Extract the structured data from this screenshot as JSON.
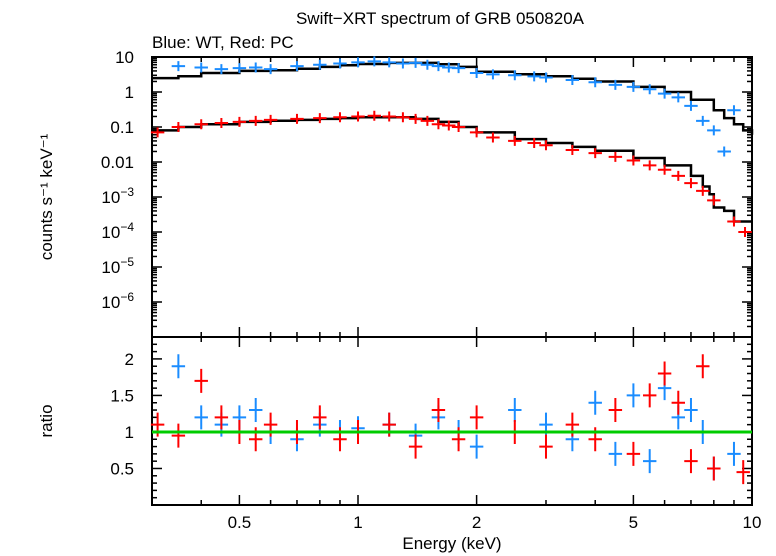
{
  "chart_data": [
    {
      "type": "scatter",
      "title": "Swift−XRT spectrum of GRB 050820A",
      "subtitle": "Blue: WT, Red: PC",
      "xlabel": "Energy (keV)",
      "ylabel": "counts s⁻¹ keV⁻¹",
      "xscale": "log",
      "yscale": "log",
      "xlim": [
        0.3,
        10
      ],
      "ylim": [
        1e-07,
        10
      ],
      "x_ticks": [
        {
          "v": 0.5,
          "label": "0.5"
        },
        {
          "v": 1,
          "label": "1"
        },
        {
          "v": 2,
          "label": "2"
        },
        {
          "v": 5,
          "label": "5"
        },
        {
          "v": 10,
          "label": "10"
        }
      ],
      "y_ticks": [
        {
          "v": 10,
          "base": "10",
          "exp": ""
        },
        {
          "v": 1,
          "base": "1",
          "exp": ""
        },
        {
          "v": 0.1,
          "base": "0.1",
          "exp": ""
        },
        {
          "v": 0.01,
          "base": "0.01",
          "exp": ""
        },
        {
          "v": 0.001,
          "base": "10",
          "exp": "−3"
        },
        {
          "v": 0.0001,
          "base": "10",
          "exp": "−4"
        },
        {
          "v": 1e-05,
          "base": "10",
          "exp": "−5"
        },
        {
          "v": 1e-06,
          "base": "10",
          "exp": "−6"
        }
      ],
      "colors": {
        "wt": "#1a8cff",
        "pc": "#ff0000",
        "model": "#000000"
      },
      "series": [
        {
          "name": "WT",
          "color": "#1a8cff",
          "x": [
            0.35,
            0.4,
            0.45,
            0.5,
            0.55,
            0.6,
            0.7,
            0.8,
            0.9,
            1.0,
            1.1,
            1.2,
            1.3,
            1.4,
            1.5,
            1.6,
            1.7,
            1.8,
            2.0,
            2.2,
            2.5,
            2.8,
            3.0,
            3.5,
            4.0,
            4.5,
            5.0,
            5.5,
            6.0,
            6.5,
            7.0,
            7.5,
            8.0,
            8.5,
            9.0
          ],
          "y": [
            5.5,
            5.0,
            4.5,
            4.8,
            5.0,
            4.5,
            5.5,
            6.0,
            6.5,
            7.0,
            7.5,
            7.0,
            6.5,
            6.8,
            6.0,
            5.5,
            5.0,
            4.8,
            3.5,
            3.2,
            3.0,
            2.8,
            2.6,
            2.2,
            1.9,
            1.6,
            1.4,
            1.2,
            0.9,
            0.7,
            0.4,
            0.15,
            0.08,
            0.02,
            0.3
          ],
          "model": {
            "x": [
              0.3,
              0.35,
              0.4,
              0.5,
              0.6,
              0.7,
              0.8,
              0.9,
              1.0,
              1.2,
              1.4,
              1.6,
              1.8,
              2.0,
              2.5,
              3.0,
              3.5,
              4.0,
              5.0,
              6.0,
              7.0,
              8.0,
              8.5,
              9.0,
              9.5,
              10.0
            ],
            "y": [
              2.5,
              2.8,
              3.5,
              4.0,
              4.2,
              4.6,
              5.2,
              5.8,
              6.3,
              6.8,
              6.8,
              6.2,
              5.2,
              3.8,
              3.2,
              2.8,
              2.4,
              2.0,
              1.4,
              1.0,
              0.6,
              0.3,
              0.18,
              0.12,
              0.08,
              0.06
            ]
          }
        },
        {
          "name": "PC",
          "color": "#ff0000",
          "x": [
            0.31,
            0.35,
            0.4,
            0.45,
            0.5,
            0.55,
            0.6,
            0.7,
            0.8,
            0.9,
            1.0,
            1.1,
            1.2,
            1.3,
            1.4,
            1.5,
            1.6,
            1.7,
            1.8,
            2.0,
            2.2,
            2.5,
            2.8,
            3.0,
            3.5,
            4.0,
            4.5,
            5.0,
            5.5,
            6.0,
            6.5,
            7.0,
            7.5,
            8.0,
            9.0,
            9.6
          ],
          "y": [
            0.07,
            0.1,
            0.12,
            0.13,
            0.14,
            0.15,
            0.16,
            0.17,
            0.18,
            0.19,
            0.2,
            0.21,
            0.2,
            0.19,
            0.17,
            0.15,
            0.12,
            0.11,
            0.1,
            0.07,
            0.05,
            0.04,
            0.035,
            0.03,
            0.022,
            0.018,
            0.014,
            0.011,
            0.008,
            0.006,
            0.004,
            0.0025,
            0.0015,
            0.0008,
            0.0002,
            0.0001
          ],
          "model": {
            "x": [
              0.3,
              0.35,
              0.4,
              0.5,
              0.6,
              0.7,
              0.8,
              0.9,
              1.0,
              1.2,
              1.4,
              1.6,
              1.8,
              2.0,
              2.5,
              3.0,
              3.5,
              4.0,
              5.0,
              6.0,
              7.0,
              7.5,
              7.8,
              8.0,
              8.5,
              9.0,
              10.0
            ],
            "y": [
              0.08,
              0.1,
              0.12,
              0.14,
              0.15,
              0.16,
              0.17,
              0.18,
              0.19,
              0.19,
              0.17,
              0.14,
              0.1,
              0.07,
              0.045,
              0.035,
              0.027,
              0.021,
              0.013,
              0.008,
              0.004,
              0.002,
              0.0012,
              0.0005,
              0.0004,
              0.0002,
              0.0002
            ]
          }
        }
      ]
    },
    {
      "type": "scatter",
      "xlabel": "Energy (keV)",
      "ylabel": "ratio",
      "xscale": "log",
      "xlim": [
        0.3,
        10
      ],
      "ylim": [
        0,
        2.3
      ],
      "y_ticks": [
        {
          "v": 0.5,
          "label": "0.5"
        },
        {
          "v": 1,
          "label": "1"
        },
        {
          "v": 1.5,
          "label": "1.5"
        },
        {
          "v": 2,
          "label": "2"
        }
      ],
      "reference_line": {
        "y": 1,
        "color": "#00cc00"
      },
      "series": [
        {
          "name": "WT",
          "color": "#1a8cff",
          "x": [
            0.35,
            0.4,
            0.45,
            0.5,
            0.55,
            0.6,
            0.7,
            0.8,
            0.9,
            1.0,
            1.2,
            1.4,
            1.6,
            1.8,
            2.0,
            2.5,
            3.0,
            3.5,
            4.0,
            4.5,
            5.0,
            5.5,
            6.0,
            6.5,
            7.0,
            7.5,
            8.0,
            9.0
          ],
          "y": [
            1.9,
            1.2,
            1.1,
            1.2,
            1.3,
            1.0,
            0.9,
            1.1,
            1.0,
            1.05,
            1.1,
            0.95,
            1.2,
            1.0,
            0.8,
            1.3,
            1.1,
            0.9,
            1.4,
            0.7,
            1.5,
            0.6,
            1.6,
            1.2,
            1.3,
            1.0,
            0.5,
            0.7
          ]
        },
        {
          "name": "PC",
          "color": "#ff0000",
          "x": [
            0.31,
            0.35,
            0.4,
            0.45,
            0.5,
            0.55,
            0.6,
            0.7,
            0.8,
            0.9,
            1.0,
            1.2,
            1.4,
            1.6,
            1.8,
            2.0,
            2.5,
            3.0,
            3.5,
            4.0,
            4.5,
            5.0,
            5.5,
            6.0,
            6.5,
            7.0,
            7.5,
            8.0,
            9.5
          ],
          "y": [
            1.1,
            0.95,
            1.7,
            1.2,
            1.0,
            0.9,
            1.1,
            1.0,
            1.2,
            0.9,
            1.0,
            1.1,
            0.8,
            1.3,
            0.9,
            1.2,
            1.0,
            0.8,
            1.1,
            0.9,
            1.3,
            0.7,
            1.5,
            1.8,
            1.4,
            0.6,
            1.9,
            0.5,
            0.45
          ]
        }
      ]
    }
  ]
}
